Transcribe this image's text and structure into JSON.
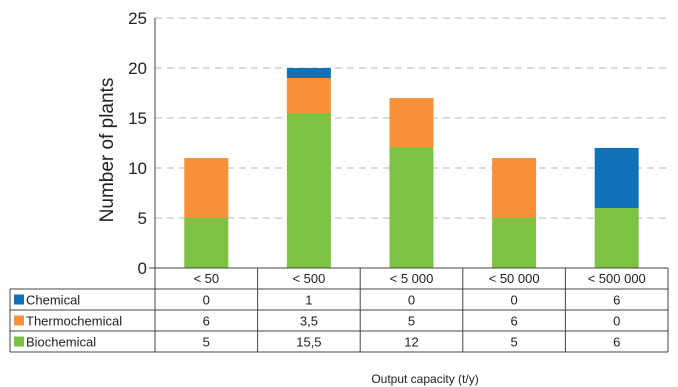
{
  "chart_data": {
    "type": "bar",
    "stacked": true,
    "categories": [
      "< 50",
      "< 500",
      "< 5 000",
      "< 50 000",
      "< 500 000"
    ],
    "series": [
      {
        "name": "Biochemical",
        "values": [
          5,
          15.5,
          12,
          5,
          6
        ],
        "labels": [
          "5",
          "15,5",
          "12",
          "5",
          "6"
        ],
        "color": "#7dc242"
      },
      {
        "name": "Thermochemical",
        "values": [
          6,
          3.5,
          5,
          6,
          0
        ],
        "labels": [
          "6",
          "3,5",
          "5",
          "6",
          "0"
        ],
        "color": "#f7923a"
      },
      {
        "name": "Chemical",
        "values": [
          0,
          1,
          0,
          0,
          6
        ],
        "labels": [
          "0",
          "1",
          "0",
          "0",
          "6"
        ],
        "color": "#0f72b8"
      }
    ],
    "table_row_order": [
      "Chemical",
      "Thermochemical",
      "Biochemical"
    ],
    "ylabel": "Number of plants",
    "xlabel": "Output capacity (t/y)",
    "ylim": [
      0,
      25
    ],
    "yticks": [
      0,
      5,
      10,
      15,
      20,
      25
    ],
    "grid": "horizontal dashed",
    "legend": "data table below chart"
  }
}
